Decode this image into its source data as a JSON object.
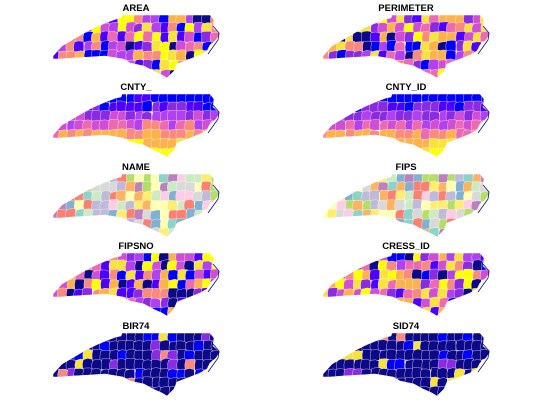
{
  "figure": {
    "panels": [
      {
        "title": "AREA",
        "palette": "sf"
      },
      {
        "title": "PERIMETER",
        "palette": "sf"
      },
      {
        "title": "CNTY_",
        "palette": "sf_gradient"
      },
      {
        "title": "CNTY_ID",
        "palette": "sf_gradient"
      },
      {
        "title": "NAME",
        "palette": "qualitative"
      },
      {
        "title": "FIPS",
        "palette": "qualitative"
      },
      {
        "title": "FIPSNO",
        "palette": "sf"
      },
      {
        "title": "CRESS_ID",
        "palette": "sf"
      },
      {
        "title": "BIR74",
        "palette": "sf_low"
      },
      {
        "title": "SID74",
        "palette": "sf_low"
      }
    ],
    "colors": {
      "sf": [
        "#0d0887",
        "#0000ff",
        "#4d00ff",
        "#8a2be2",
        "#b040f0",
        "#d04ed6",
        "#ee6ab0",
        "#f98a7c",
        "#fdb24a",
        "#f8e33a",
        "#ffff00"
      ],
      "qualitative": [
        "#8dd3c7",
        "#ffffb3",
        "#bebada",
        "#fb8072",
        "#80b1d3",
        "#fdb462",
        "#b3de69",
        "#fccde5",
        "#d9d9d9",
        "#bc80bd",
        "#ccebc5",
        "#ffed6f"
      ],
      "border": "#ffffff",
      "background": "#ffffff"
    }
  }
}
